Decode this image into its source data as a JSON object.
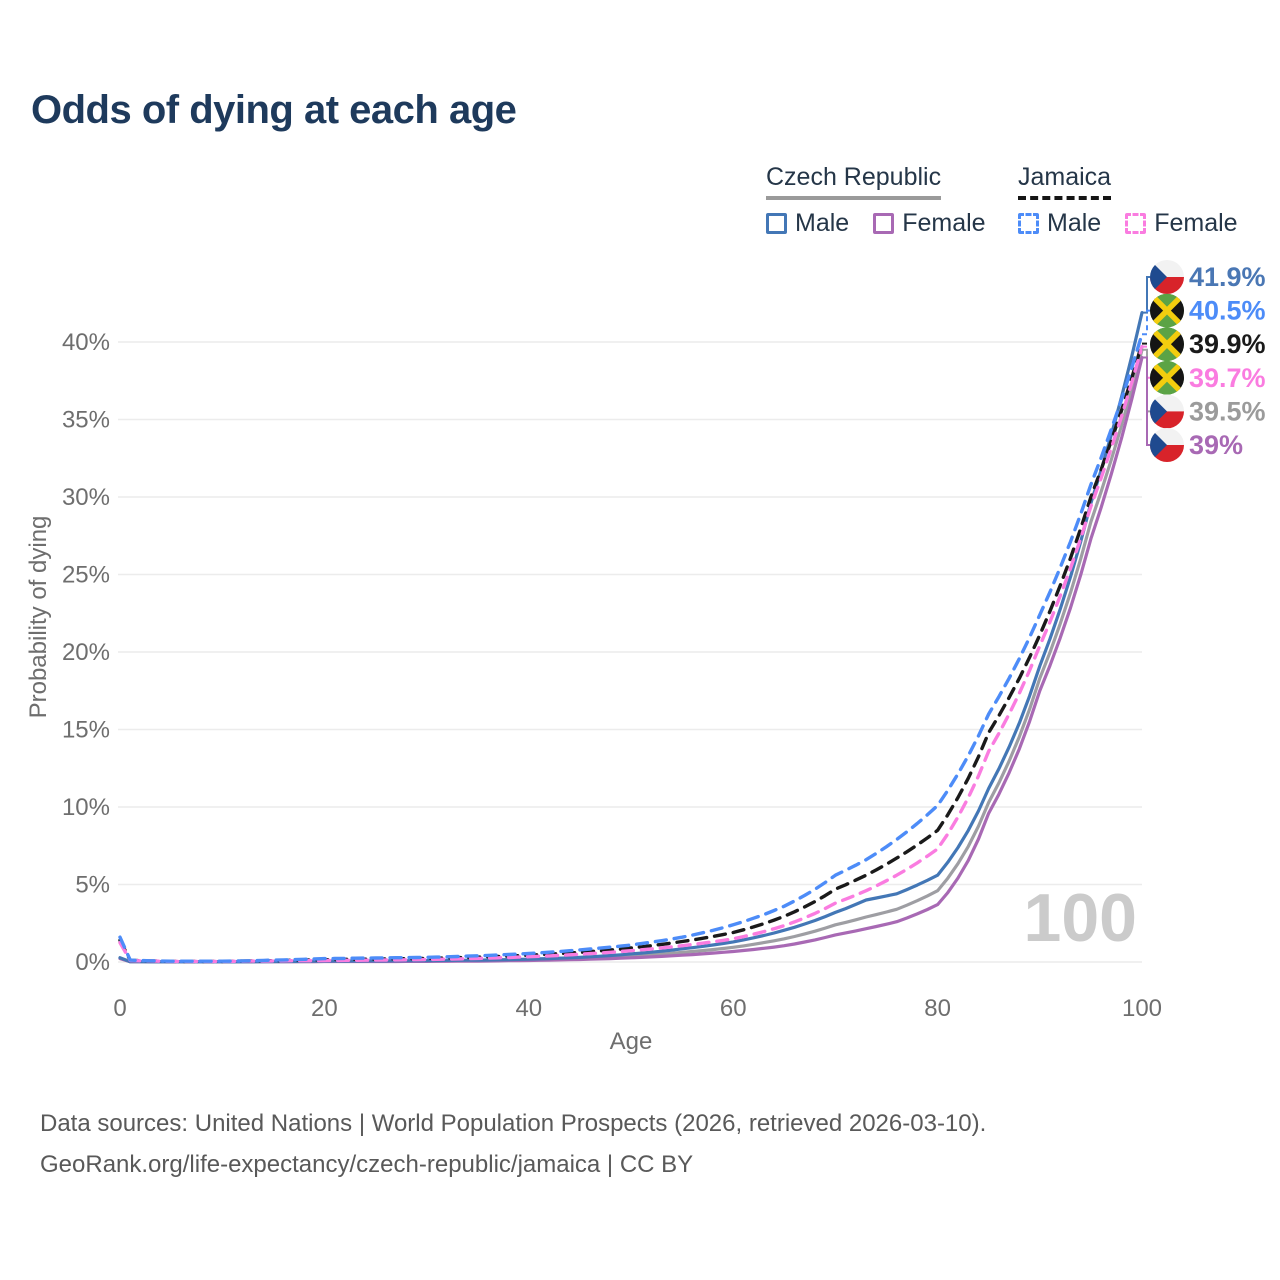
{
  "title": "Odds of dying at each age",
  "legend": {
    "groups": [
      {
        "label": "Czech Republic",
        "line_style": "solid",
        "underline_color": "#9a9a9a",
        "items": [
          {
            "label": "Male",
            "style": "solid",
            "color": "#4377b6"
          },
          {
            "label": "Female",
            "style": "solid",
            "color": "#a869b4"
          }
        ]
      },
      {
        "label": "Jamaica",
        "line_style": "dashed",
        "underline_color": "#151515",
        "items": [
          {
            "label": "Male",
            "style": "dashed",
            "color": "#4d8cf8"
          },
          {
            "label": "Female",
            "style": "dashed",
            "color": "#fa7ce0"
          }
        ]
      }
    ]
  },
  "watermark": "100",
  "footer": {
    "line1": "Data sources: United Nations | World Population Prospects (2026, retrieved 2026-03-10).",
    "line2": "GeoRank.org/life-expectancy/czech-republic/jamaica | CC BY"
  },
  "flags": {
    "czech": {
      "white": "#f2f2f2",
      "red": "#d8232a",
      "blue": "#1f4a8f"
    },
    "jamaica": {
      "green": "#5ba345",
      "black": "#151515",
      "gold": "#f3cd0e"
    }
  },
  "chart_data": {
    "type": "line",
    "title": "Odds of dying at each age",
    "xlabel": "Age",
    "ylabel": "Probability of dying",
    "xlim": [
      0,
      100
    ],
    "ylim": [
      0,
      43
    ],
    "grid": true,
    "legend_position": "top-right",
    "x_ticks": [
      0,
      20,
      40,
      60,
      80,
      100
    ],
    "y_ticks": [
      0,
      5,
      10,
      15,
      20,
      25,
      30,
      35,
      40
    ],
    "y_tick_suffix": "%",
    "x": [
      0,
      1,
      5,
      10,
      15,
      20,
      25,
      30,
      35,
      40,
      45,
      50,
      55,
      60,
      65,
      70,
      73,
      76,
      80,
      85,
      90,
      95,
      100
    ],
    "series": [
      {
        "name": "Czech Republic Male",
        "flag_icon": "czech-flag-icon",
        "country": "czech",
        "style": "solid",
        "color": "#4377b6",
        "label_color": "#4a77b4",
        "end_label": "41.9%",
        "values": [
          0.28,
          0.02,
          0.01,
          0.01,
          0.03,
          0.06,
          0.07,
          0.09,
          0.12,
          0.18,
          0.3,
          0.52,
          0.85,
          1.3,
          2.05,
          3.2,
          4.0,
          4.4,
          5.6,
          11.2,
          19.1,
          29.6,
          41.9
        ]
      },
      {
        "name": "Jamaica Male",
        "flag_icon": "jamaica-flag-icon",
        "country": "jamaica",
        "style": "dashed",
        "color": "#4d8cf8",
        "label_color": "#4d8cf8",
        "end_label": "40.5%",
        "values": [
          1.6,
          0.12,
          0.05,
          0.05,
          0.12,
          0.22,
          0.26,
          0.3,
          0.4,
          0.55,
          0.78,
          1.1,
          1.6,
          2.4,
          3.6,
          5.6,
          6.6,
          7.9,
          10.1,
          16.0,
          22.4,
          30.8,
          40.5
        ]
      },
      {
        "name": "Jamaica",
        "flag_icon": "jamaica-flag-icon",
        "country": "jamaica",
        "style": "dashed",
        "color": "#1a1a1a",
        "label_color": "#1a1a1a",
        "end_label": "39.9%",
        "values": [
          1.4,
          0.11,
          0.04,
          0.04,
          0.09,
          0.15,
          0.19,
          0.23,
          0.31,
          0.44,
          0.62,
          0.9,
          1.32,
          1.9,
          2.95,
          4.7,
          5.6,
          6.7,
          8.5,
          14.8,
          21.1,
          30.0,
          39.9
        ]
      },
      {
        "name": "Jamaica Female",
        "flag_icon": "jamaica-flag-icon",
        "country": "jamaica",
        "style": "dashed",
        "color": "#fa7ce0",
        "label_color": "#fa7ce0",
        "end_label": "39.7%",
        "values": [
          1.25,
          0.1,
          0.04,
          0.04,
          0.07,
          0.1,
          0.12,
          0.16,
          0.23,
          0.34,
          0.5,
          0.73,
          1.05,
          1.5,
          2.35,
          3.8,
          4.6,
          5.6,
          7.3,
          13.6,
          20.4,
          29.4,
          39.7
        ]
      },
      {
        "name": "Czech Republic",
        "flag_icon": "czech-flag-icon",
        "country": "czech",
        "style": "solid",
        "color": "#9e9ea3",
        "label_color": "#9b9b9b",
        "end_label": "39.5%",
        "values": [
          0.25,
          0.02,
          0.01,
          0.01,
          0.02,
          0.04,
          0.05,
          0.06,
          0.09,
          0.13,
          0.22,
          0.38,
          0.62,
          0.95,
          1.5,
          2.4,
          2.9,
          3.4,
          4.6,
          10.3,
          18.3,
          28.4,
          39.5
        ]
      },
      {
        "name": "Czech Republic Female",
        "flag_icon": "czech-flag-icon",
        "country": "czech",
        "style": "solid",
        "color": "#a869b4",
        "label_color": "#a869b4",
        "end_label": "39%",
        "values": [
          0.22,
          0.02,
          0.01,
          0.01,
          0.02,
          0.03,
          0.03,
          0.04,
          0.06,
          0.1,
          0.16,
          0.27,
          0.44,
          0.68,
          1.05,
          1.75,
          2.15,
          2.6,
          3.7,
          9.6,
          17.5,
          27.3,
          39.0
        ]
      }
    ]
  }
}
